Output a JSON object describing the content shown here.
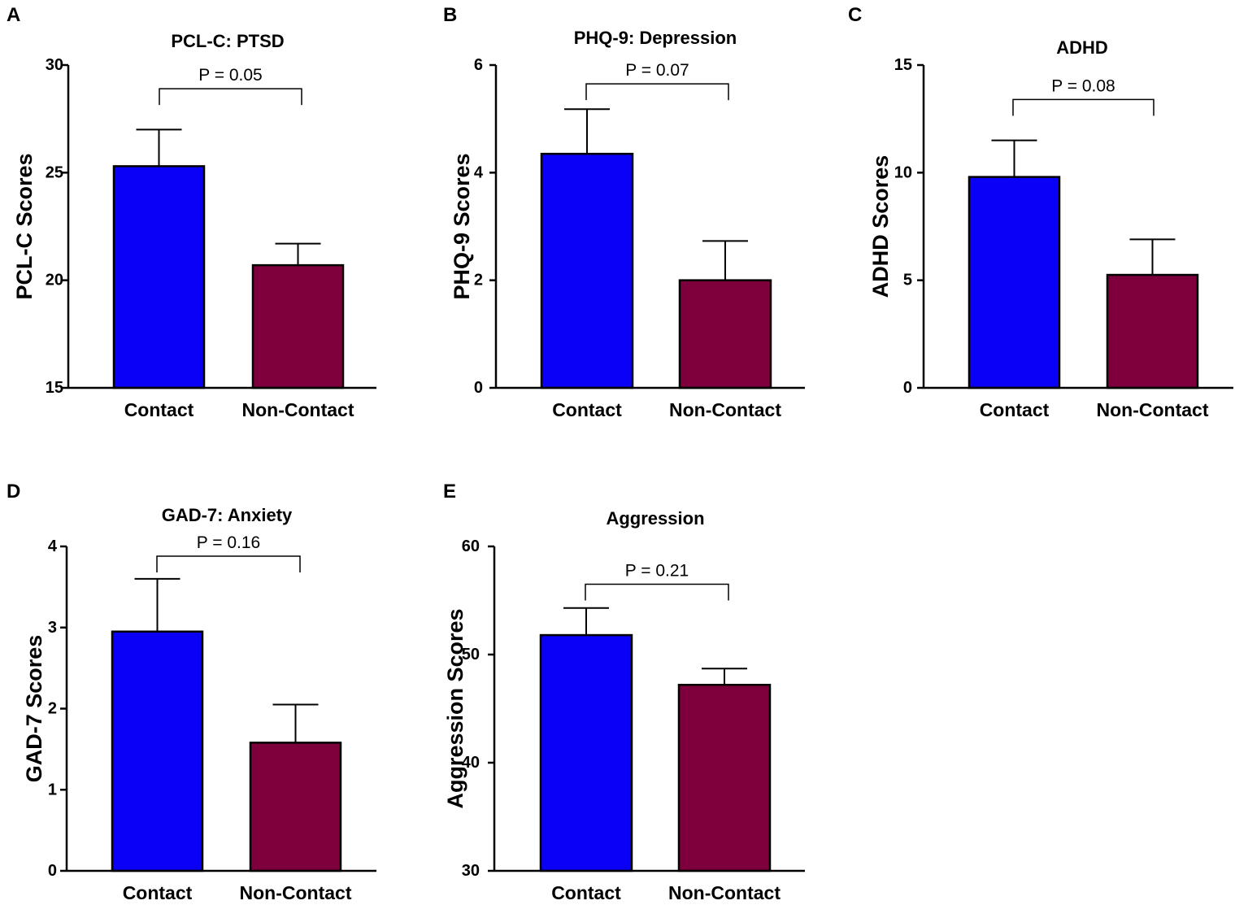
{
  "figure_name": "psychological-outcomes-contact-vs-non-contact",
  "colors": {
    "contact": "#0A00F5",
    "non_contact": "#7D003C",
    "axis": "#000000"
  },
  "chart_data": [
    {
      "panel": "A",
      "type": "bar",
      "title": "PCL-C: PTSD",
      "ylabel": "PCL-C Scores",
      "xlabel": "",
      "categories": [
        "Contact",
        "Non-Contact"
      ],
      "values": [
        25.3,
        20.7
      ],
      "errors": [
        1.7,
        1.0
      ],
      "ylim": [
        15,
        30
      ],
      "yticks": [
        15,
        20,
        25,
        30
      ],
      "p_value": "P = 0.05",
      "bracket_y": 28.9
    },
    {
      "panel": "B",
      "type": "bar",
      "title": "PHQ-9: Depression",
      "ylabel": "PHQ-9 Scores",
      "xlabel": "",
      "categories": [
        "Contact",
        "Non-Contact"
      ],
      "values": [
        4.35,
        2.0
      ],
      "errors": [
        0.83,
        0.73
      ],
      "ylim": [
        0,
        6
      ],
      "yticks": [
        0,
        2,
        4,
        6
      ],
      "p_value": "P = 0.07",
      "bracket_y": 5.65
    },
    {
      "panel": "C",
      "type": "bar",
      "title": "ADHD",
      "ylabel": "ADHD Scores",
      "xlabel": "",
      "categories": [
        "Contact",
        "Non-Contact"
      ],
      "values": [
        9.8,
        5.25
      ],
      "errors": [
        1.7,
        1.65
      ],
      "ylim": [
        0,
        15
      ],
      "yticks": [
        0,
        5,
        10,
        15
      ],
      "p_value": "P = 0.08",
      "bracket_y": 13.4
    },
    {
      "panel": "D",
      "type": "bar",
      "title": "GAD-7: Anxiety",
      "ylabel": "GAD-7 Scores",
      "xlabel": "",
      "categories": [
        "Contact",
        "Non-Contact"
      ],
      "values": [
        2.95,
        1.58
      ],
      "errors": [
        0.65,
        0.47
      ],
      "ylim": [
        0,
        4
      ],
      "yticks": [
        0,
        1,
        2,
        3,
        4
      ],
      "p_value": "P = 0.16",
      "bracket_y": 3.88
    },
    {
      "panel": "E",
      "type": "bar",
      "title": "Aggression",
      "ylabel": "Aggression Scores",
      "xlabel": "",
      "categories": [
        "Contact",
        "Non-Contact"
      ],
      "values": [
        51.8,
        47.2
      ],
      "errors": [
        2.5,
        1.5
      ],
      "ylim": [
        30,
        60
      ],
      "yticks": [
        30,
        40,
        50,
        60
      ],
      "p_value": "P = 0.21",
      "bracket_y": 56.5
    }
  ]
}
